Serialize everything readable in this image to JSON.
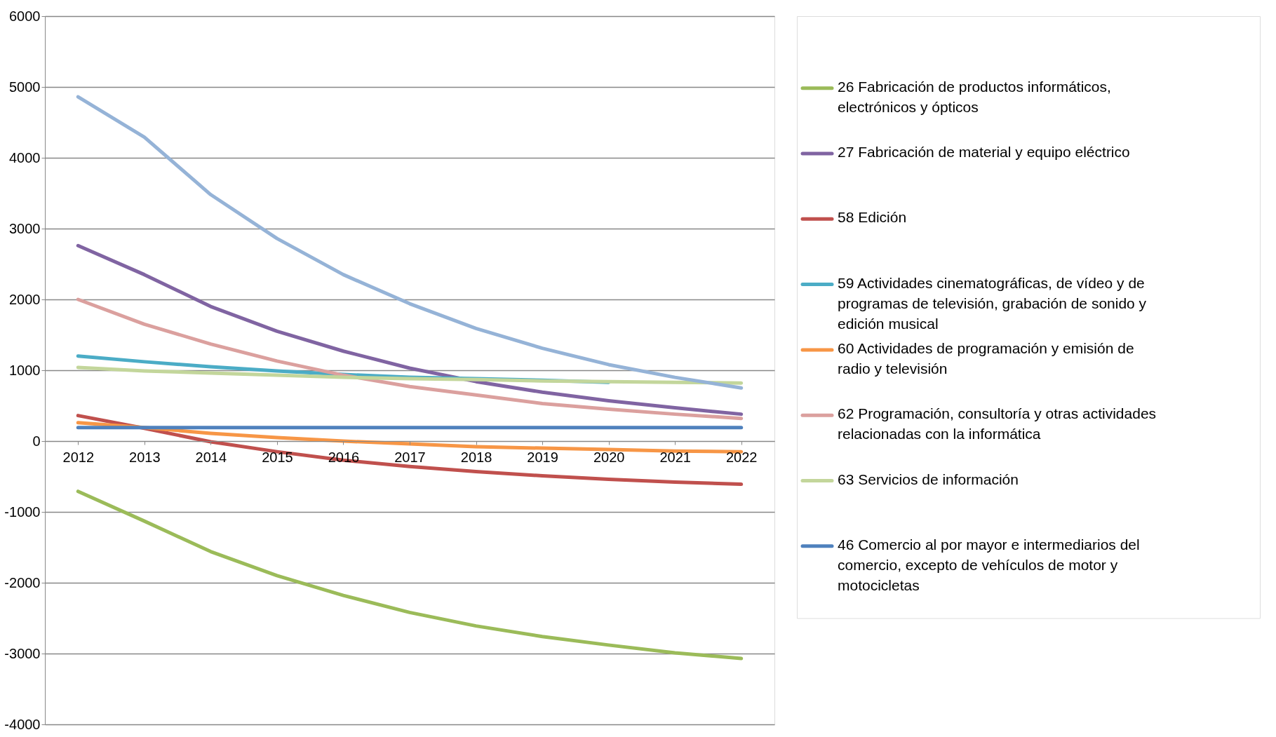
{
  "chart_data": {
    "type": "line",
    "categories": [
      "2012",
      "2013",
      "2014",
      "2015",
      "2016",
      "2017",
      "2018",
      "2019",
      "2020",
      "2021",
      "2022"
    ],
    "ylim": [
      -4000,
      6000
    ],
    "yticks": [
      -4000,
      -3000,
      -2000,
      -1000,
      0,
      1000,
      2000,
      3000,
      4000,
      5000,
      6000
    ],
    "grid": "y",
    "legend": "right",
    "marker": "none",
    "line_style": "solid",
    "series": [
      {
        "name": "26  Fabricación de productos informáticos, electrónicos y ópticos",
        "color": "#9bbb59",
        "values": [
          -710,
          -1130,
          -1560,
          -1900,
          -2180,
          -2420,
          -2610,
          -2760,
          -2880,
          -2990,
          -3070
        ]
      },
      {
        "name": "27   Fabricación de material y equipo eléctrico",
        "color": "#8064a2",
        "values": [
          2760,
          2350,
          1900,
          1550,
          1270,
          1030,
          840,
          690,
          570,
          470,
          380
        ]
      },
      {
        "name": "58   Edición",
        "color": "#c0504d",
        "values": [
          360,
          180,
          -10,
          -150,
          -270,
          -360,
          -430,
          -490,
          -540,
          -580,
          -610
        ]
      },
      {
        "name": "59   Actividades cinematográficas, de vídeo y de programas de televisión, grabación de sonido y edición musical",
        "color": "#4bacc6",
        "values": [
          1200,
          1120,
          1050,
          990,
          940,
          900,
          880,
          860,
          830,
          null,
          null
        ]
      },
      {
        "name": "60   Actividades de programación y emisión de radio y televisión",
        "color": "#f79646",
        "values": [
          260,
          190,
          110,
          50,
          0,
          -40,
          -80,
          -100,
          -120,
          -140,
          -150
        ]
      },
      {
        "name": "62   Programación, consultoría y otras actividades relacionadas con la informática",
        "color": "#dba09e",
        "values": [
          2000,
          1650,
          1370,
          1130,
          930,
          770,
          650,
          530,
          450,
          380,
          320
        ]
      },
      {
        "name": "63   Servicios de información",
        "color": "#c3d69b",
        "values": [
          1040,
          990,
          960,
          930,
          900,
          880,
          870,
          850,
          840,
          830,
          820
        ]
      },
      {
        "name": "46 Comercio al por mayor e intermediarios del comercio, excepto de vehículos de motor y motocicletas",
        "color": "#4f81bd",
        "values": [
          190,
          190,
          190,
          190,
          190,
          190,
          190,
          190,
          190,
          190,
          190
        ]
      },
      {
        "color": "#95b3d7",
        "values": [
          4860,
          4290,
          3480,
          2860,
          2350,
          1940,
          1590,
          1310,
          1080,
          900,
          750
        ]
      }
    ]
  }
}
